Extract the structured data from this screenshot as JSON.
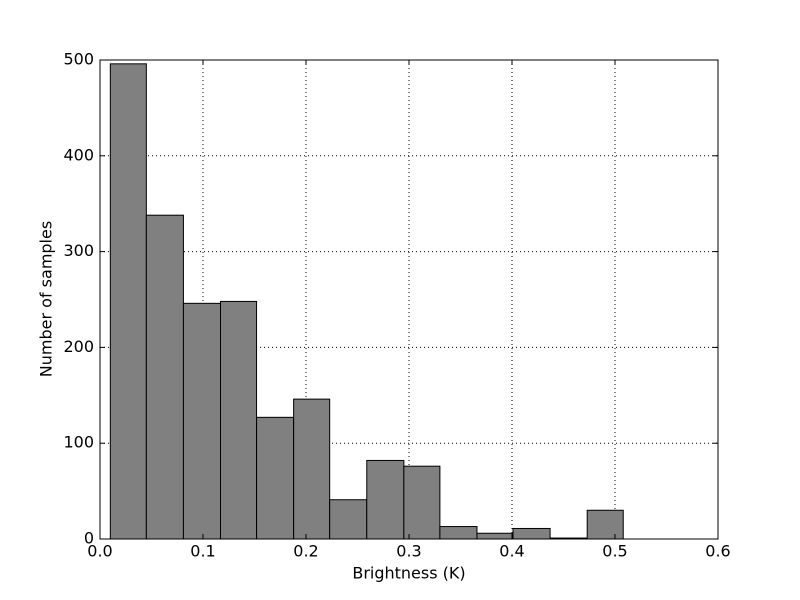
{
  "chart_data": {
    "type": "histogram",
    "xlabel": "Brightness (K)",
    "ylabel": "Number of samples",
    "bins": [
      0.01,
      0.045,
      0.081,
      0.117,
      0.152,
      0.188,
      0.223,
      0.259,
      0.295,
      0.33,
      0.366,
      0.401,
      0.437,
      0.473,
      0.508
    ],
    "counts": [
      496,
      338,
      246,
      248,
      127,
      146,
      41,
      82,
      76,
      13,
      6,
      11,
      1,
      30
    ],
    "color": "#808080",
    "xlim": [
      0,
      0.6
    ],
    "xticks": [
      {
        "value": 0,
        "label": "0.0"
      },
      0.1,
      0.2,
      0.3,
      0.4,
      0.5,
      0.6
    ],
    "ylim": [
      0,
      500
    ],
    "yticks": [
      0,
      100,
      200,
      300,
      400,
      500
    ],
    "grid": true
  }
}
